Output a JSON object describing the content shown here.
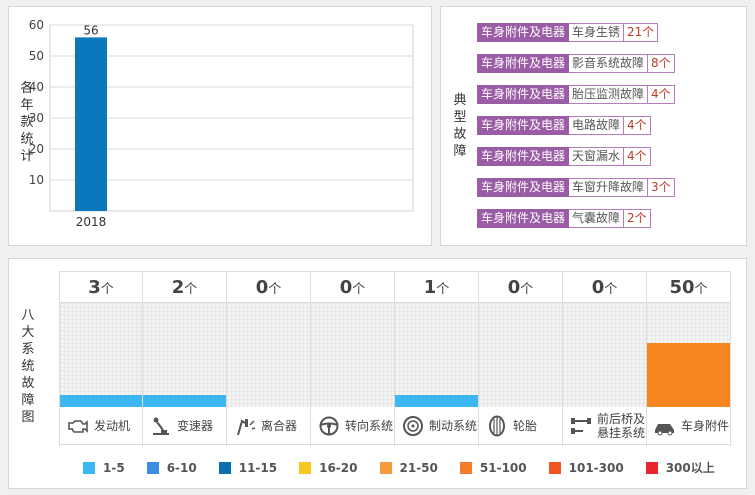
{
  "year_panel": {
    "vertical_label": "各年款统计",
    "chart_data": {
      "type": "bar",
      "categories": [
        "2018"
      ],
      "values": [
        56
      ],
      "ylim": [
        0,
        60
      ],
      "yticks": [
        10,
        20,
        30,
        40,
        50,
        60
      ],
      "grid": true,
      "bar_color": "#0b77bd"
    }
  },
  "fault_panel": {
    "vertical_label": "典型故障",
    "items": [
      {
        "category": "车身附件及电器",
        "name": "车身生锈",
        "count": "21个"
      },
      {
        "category": "车身附件及电器",
        "name": "影音系统故障",
        "count": "8个"
      },
      {
        "category": "车身附件及电器",
        "name": "胎压监测故障",
        "count": "4个"
      },
      {
        "category": "车身附件及电器",
        "name": "电路故障",
        "count": "4个"
      },
      {
        "category": "车身附件及电器",
        "name": "天窗漏水",
        "count": "4个"
      },
      {
        "category": "车身附件及电器",
        "name": "车窗升降故障",
        "count": "3个"
      },
      {
        "category": "车身附件及电器",
        "name": "气囊故障",
        "count": "2个"
      }
    ]
  },
  "system_panel": {
    "vertical_label": "八大系统故障图",
    "unit": "个",
    "systems": [
      {
        "count": "3",
        "label": "发动机",
        "icon": "engine-icon",
        "level": 0.12,
        "color": "#3db7f3"
      },
      {
        "count": "2",
        "label": "变速器",
        "icon": "gear-shift-icon",
        "level": 0.12,
        "color": "#3db7f3"
      },
      {
        "count": "0",
        "label": "离合器",
        "icon": "clutch-pedal-icon",
        "level": 0,
        "color": "#3db7f3"
      },
      {
        "count": "0",
        "label": "转向系统",
        "icon": "steering-wheel-icon",
        "level": 0,
        "color": "#3db7f3"
      },
      {
        "count": "1",
        "label": "制动系统",
        "icon": "brake-disc-icon",
        "level": 0.12,
        "color": "#3db7f3"
      },
      {
        "count": "0",
        "label": "轮胎",
        "icon": "tire-icon",
        "level": 0,
        "color": "#3db7f3"
      },
      {
        "count": "0",
        "label": "前后桥及悬挂系统",
        "icon": "suspension-icon",
        "level": 0,
        "color": "#3db7f3"
      },
      {
        "count": "50",
        "label": "车身附件",
        "icon": "car-body-icon",
        "level": 0.62,
        "color": "#f5861f"
      }
    ],
    "legend": [
      {
        "label": "1-5",
        "color": "#3db7f3"
      },
      {
        "label": "6-10",
        "color": "#3a8ee6"
      },
      {
        "label": "11-15",
        "color": "#0b6fb0"
      },
      {
        "label": "16-20",
        "color": "#f7c620"
      },
      {
        "label": "21-50",
        "color": "#f39a3a"
      },
      {
        "label": "51-100",
        "color": "#f57c2b"
      },
      {
        "label": "101-300",
        "color": "#ef5622"
      },
      {
        "label": "300以上",
        "color": "#e8252f"
      }
    ]
  }
}
